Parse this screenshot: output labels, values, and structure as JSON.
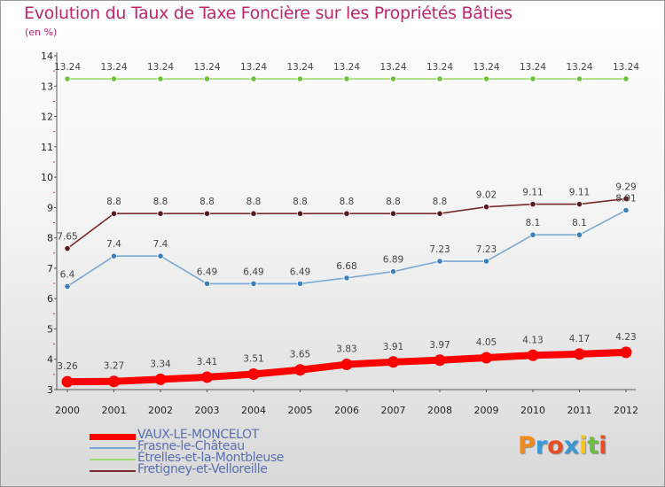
{
  "header": {
    "title": "Evolution du Taux de Taxe Foncière sur les Propriétés Bâties",
    "subtitle": "(en %)"
  },
  "brand": {
    "text": "Proxiti",
    "letters": [
      "P",
      "r",
      "o",
      "x",
      "i",
      "t",
      "i"
    ],
    "colors": [
      "#f08a1c",
      "#3a98d8",
      "#e94e24",
      "#3a98d8",
      "#f4c419",
      "#6cbf3f",
      "#e94e24"
    ]
  },
  "chart_data": {
    "type": "line",
    "title": "Evolution du Taux de Taxe Foncière sur les Propriétés Bâties",
    "subtitle": "(en %)",
    "xlabel": "",
    "ylabel": "",
    "ylim": [
      3,
      14
    ],
    "yticks": [
      3,
      4,
      5,
      6,
      7,
      8,
      9,
      10,
      11,
      12,
      13,
      14
    ],
    "grid": false,
    "legend_position": "bottom-left",
    "x": [
      "2000",
      "2001",
      "2002",
      "2003",
      "2004",
      "2005",
      "2006",
      "2007",
      "2008",
      "2009",
      "2010",
      "2011",
      "2012"
    ],
    "series": [
      {
        "name": "VAUX-LE-MONCELOT",
        "color": "#ff0000",
        "values": [
          3.26,
          3.27,
          3.34,
          3.41,
          3.51,
          3.65,
          3.83,
          3.91,
          3.97,
          4.05,
          4.13,
          4.17,
          4.23
        ],
        "labels": [
          "3.26",
          "3.27",
          "3.34",
          "3.41",
          "3.51",
          "3.65",
          "3.83",
          "3.91",
          "3.97",
          "4.05",
          "4.13",
          "4.17",
          "4.23"
        ]
      },
      {
        "name": "Frasne-le-Château",
        "color": "#7aa8d6",
        "marker_color": "#3a80c0",
        "values": [
          6.4,
          7.4,
          7.4,
          6.49,
          6.49,
          6.49,
          6.68,
          6.89,
          7.23,
          7.23,
          8.1,
          8.1,
          8.91
        ],
        "labels": [
          "6.4",
          "7.4",
          "7.4",
          "6.49",
          "6.49",
          "6.49",
          "6.68",
          "6.89",
          "7.23",
          "7.23",
          "8.1",
          "8.1",
          "8.91"
        ]
      },
      {
        "name": "Étrelles-et-la-Montbleuse",
        "color": "#9ddc6e",
        "marker_color": "#6cc23a",
        "values": [
          13.24,
          13.24,
          13.24,
          13.24,
          13.24,
          13.24,
          13.24,
          13.24,
          13.24,
          13.24,
          13.24,
          13.24,
          13.24
        ],
        "labels": [
          "13.24",
          "13.24",
          "13.24",
          "13.24",
          "13.24",
          "13.24",
          "13.24",
          "13.24",
          "13.24",
          "13.24",
          "13.24",
          "13.24",
          "13.24"
        ]
      },
      {
        "name": "Fretigney-et-Velloreille",
        "color": "#7a2a2a",
        "marker_color": "#5a1a1a",
        "values": [
          7.65,
          8.8,
          8.8,
          8.8,
          8.8,
          8.8,
          8.8,
          8.8,
          8.8,
          9.02,
          9.11,
          9.11,
          9.29
        ],
        "labels": [
          "7.65",
          "8.8",
          "8.8",
          "8.8",
          "8.8",
          "8.8",
          "8.8",
          "8.8",
          "8.8",
          "9.02",
          "9.11",
          "9.11",
          "9.29"
        ]
      }
    ]
  }
}
